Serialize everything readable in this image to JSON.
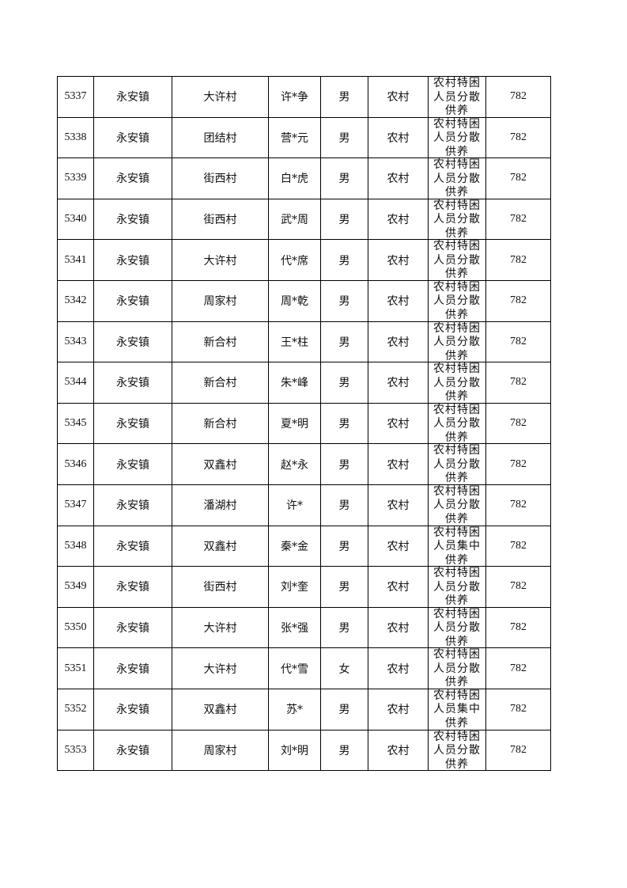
{
  "rows": [
    [
      "5337",
      "永安镇",
      "大许村",
      "许*争",
      "男",
      "农村",
      "农村特困人员分散供养",
      "782"
    ],
    [
      "5338",
      "永安镇",
      "团结村",
      "营*元",
      "男",
      "农村",
      "农村特困人员分散供养",
      "782"
    ],
    [
      "5339",
      "永安镇",
      "街西村",
      "白*虎",
      "男",
      "农村",
      "农村特困人员分散供养",
      "782"
    ],
    [
      "5340",
      "永安镇",
      "街西村",
      "武*周",
      "男",
      "农村",
      "农村特困人员分散供养",
      "782"
    ],
    [
      "5341",
      "永安镇",
      "大许村",
      "代*席",
      "男",
      "农村",
      "农村特困人员分散供养",
      "782"
    ],
    [
      "5342",
      "永安镇",
      "周家村",
      "周*乾",
      "男",
      "农村",
      "农村特困人员分散供养",
      "782"
    ],
    [
      "5343",
      "永安镇",
      "新合村",
      "王*柱",
      "男",
      "农村",
      "农村特困人员分散供养",
      "782"
    ],
    [
      "5344",
      "永安镇",
      "新合村",
      "朱*峰",
      "男",
      "农村",
      "农村特困人员分散供养",
      "782"
    ],
    [
      "5345",
      "永安镇",
      "新合村",
      "夏*明",
      "男",
      "农村",
      "农村特困人员分散供养",
      "782"
    ],
    [
      "5346",
      "永安镇",
      "双鑫村",
      "赵*永",
      "男",
      "农村",
      "农村特困人员分散供养",
      "782"
    ],
    [
      "5347",
      "永安镇",
      "潘湖村",
      "许*",
      "男",
      "农村",
      "农村特困人员分散供养",
      "782"
    ],
    [
      "5348",
      "永安镇",
      "双鑫村",
      "秦*金",
      "男",
      "农村",
      "农村特困人员集中供养",
      "782"
    ],
    [
      "5349",
      "永安镇",
      "街西村",
      "刘*奎",
      "男",
      "农村",
      "农村特困人员分散供养",
      "782"
    ],
    [
      "5350",
      "永安镇",
      "大许村",
      "张*强",
      "男",
      "农村",
      "农村特困人员分散供养",
      "782"
    ],
    [
      "5351",
      "永安镇",
      "大许村",
      "代*雪",
      "女",
      "农村",
      "农村特困人员分散供养",
      "782"
    ],
    [
      "5352",
      "永安镇",
      "双鑫村",
      "苏*",
      "男",
      "农村",
      "农村特困人员集中供养",
      "782"
    ],
    [
      "5353",
      "永安镇",
      "周家村",
      "刘*明",
      "男",
      "农村",
      "农村特困人员分散供养",
      "782"
    ]
  ]
}
